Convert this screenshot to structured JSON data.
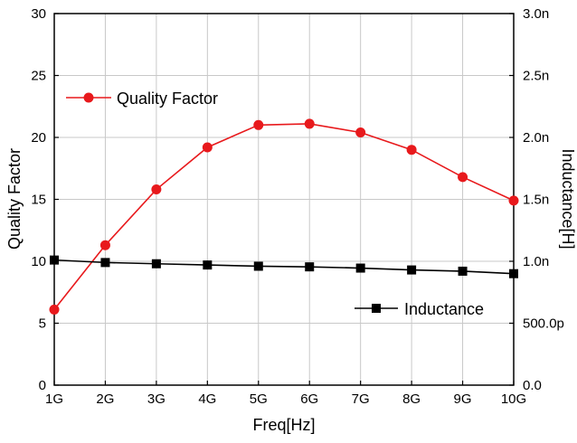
{
  "chart_data": {
    "type": "line",
    "x_categories": [
      "1G",
      "2G",
      "3G",
      "4G",
      "5G",
      "6G",
      "7G",
      "8G",
      "9G",
      "10G"
    ],
    "xlabel": "Freq[Hz]",
    "ylabel_left": "Quality Factor",
    "ylabel_right": "Inductance[H]",
    "ylim_left": [
      0,
      30
    ],
    "ylim_right": [
      0,
      3e-09
    ],
    "yticks_left": [
      "0",
      "5",
      "10",
      "15",
      "20",
      "25",
      "30"
    ],
    "yticks_right": [
      "0.0",
      "500.0p",
      "1.0n",
      "1.5n",
      "2.0n",
      "2.5n",
      "3.0n"
    ],
    "grid": true,
    "series": [
      {
        "name": "Quality Factor",
        "axis": "left",
        "color": "#e8191c",
        "marker": "circle",
        "values": [
          6.1,
          11.3,
          15.8,
          19.2,
          21.0,
          21.1,
          20.4,
          19.0,
          16.8,
          14.9
        ]
      },
      {
        "name": "Inductance",
        "axis": "right",
        "color": "#000000",
        "marker": "square",
        "values": [
          1.01e-09,
          9.9e-10,
          9.8e-10,
          9.7e-10,
          9.6e-10,
          9.55e-10,
          9.45e-10,
          9.3e-10,
          9.2e-10,
          9e-10
        ]
      }
    ],
    "legends": [
      {
        "label": "Quality Factor",
        "placement": "upper-left"
      },
      {
        "label": "Inductance",
        "placement": "lower-right"
      }
    ]
  }
}
